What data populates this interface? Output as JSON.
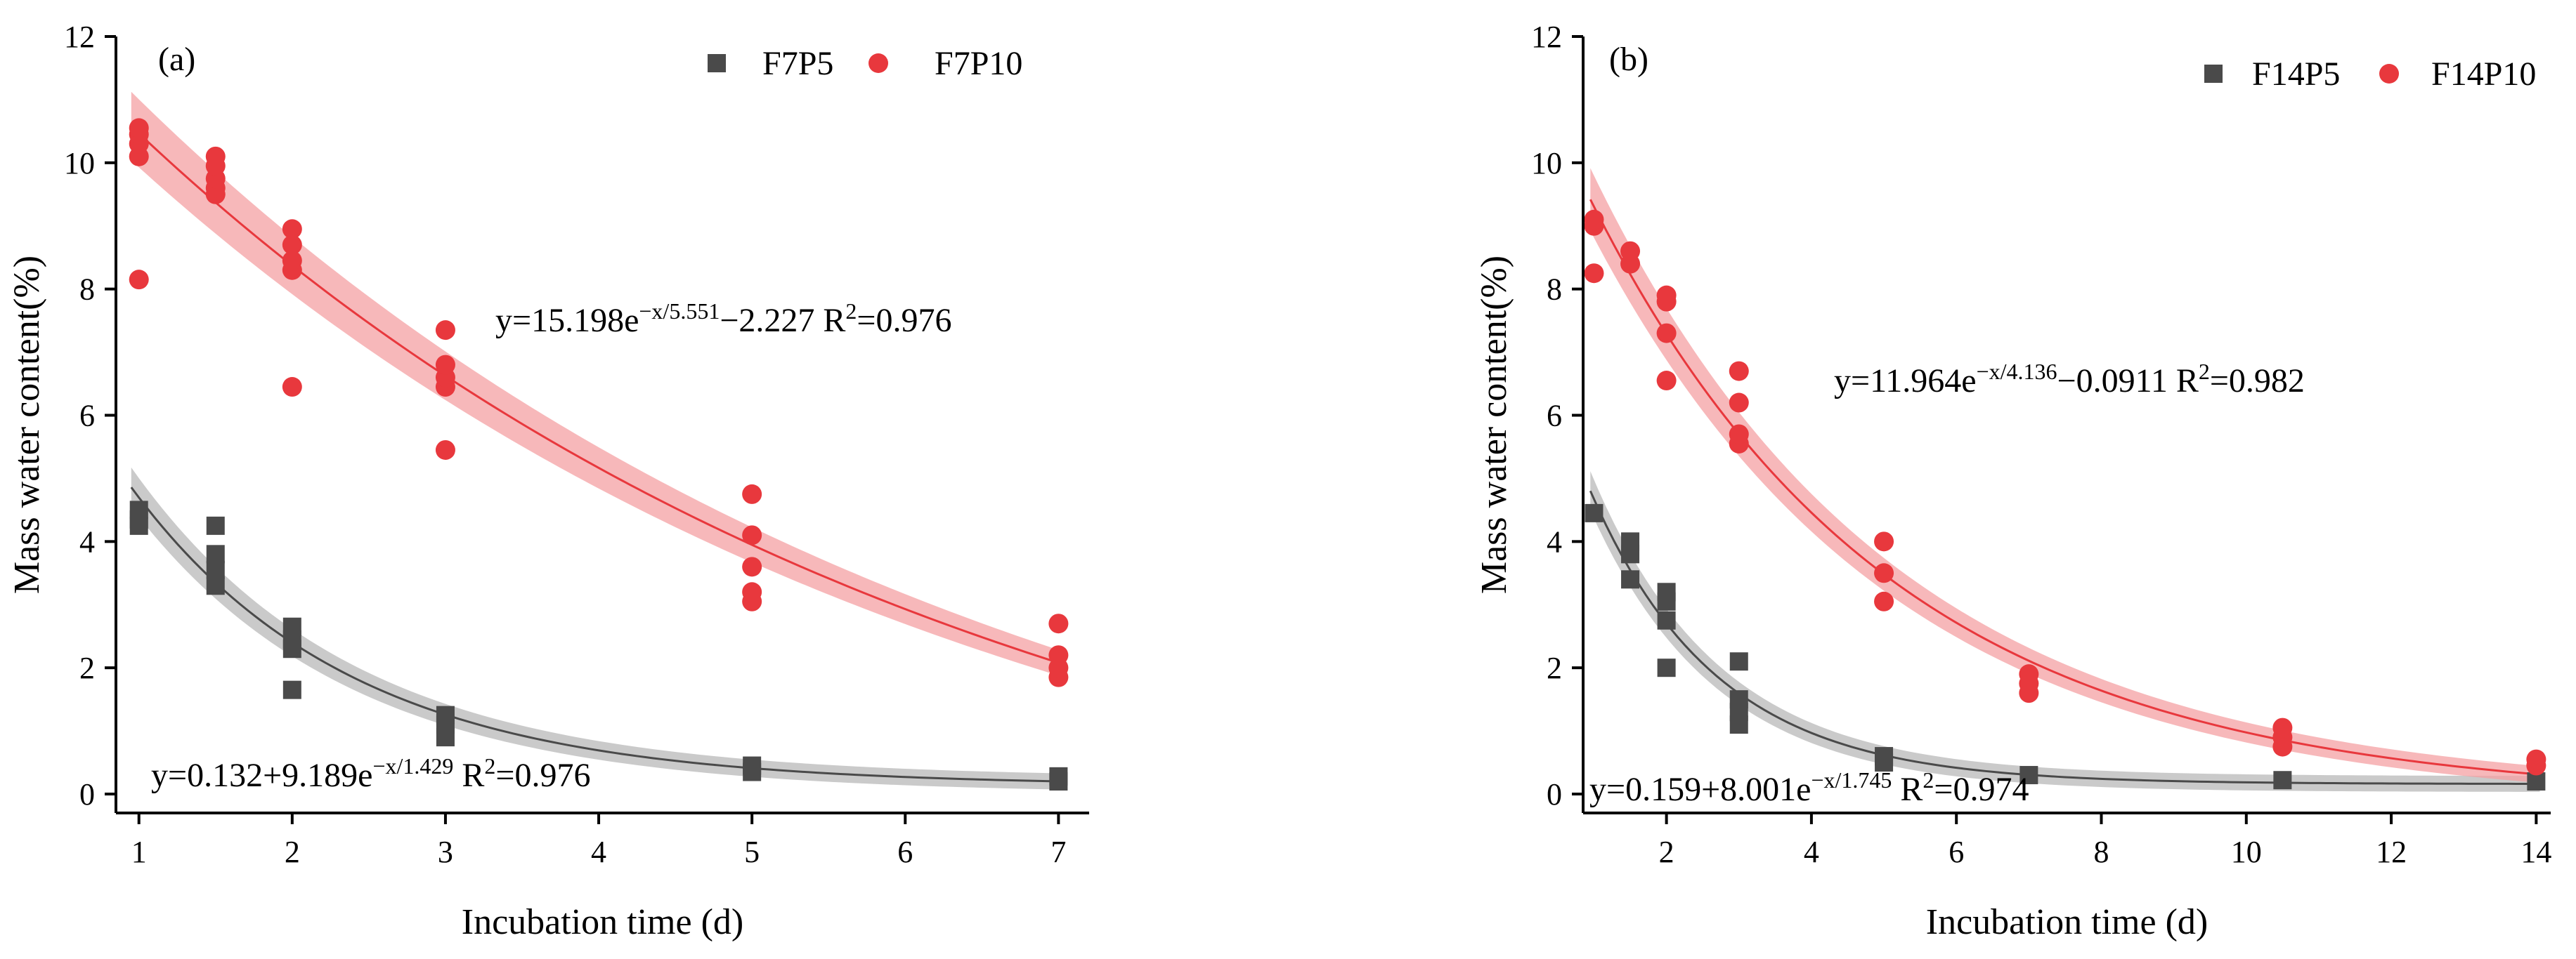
{
  "chart_data": [
    {
      "type": "scatter",
      "panel_label": "(a)",
      "xlabel": "Incubation time (d)",
      "ylabel": "Mass water content(%)",
      "xlim": [
        0.85,
        7.2
      ],
      "ylim": [
        -0.3,
        12
      ],
      "xticks": [
        1,
        2,
        3,
        4,
        5,
        6,
        7
      ],
      "yticks": [
        0,
        2,
        4,
        6,
        8,
        10,
        12
      ],
      "grid": false,
      "legend_position": "top-right",
      "series": [
        {
          "name": "F7P5",
          "marker": "square",
          "color": "#4a4a4a",
          "band_color": "#b8b8b8",
          "fit": {
            "model": "c+a*exp(-x/t)",
            "a": 9.189,
            "t": 1.429,
            "c": 0.132
          },
          "equation": {
            "parts": [
              {
                "text": "y=0.132+9.189e"
              },
              {
                "text": "−x/1.429",
                "sup": true
              },
              {
                "text": " R"
              },
              {
                "text": "2",
                "sup": true
              },
              {
                "text": "=0.976"
              }
            ]
          },
          "points": [
            [
              1,
              4.25
            ],
            [
              1,
              4.5
            ],
            [
              1,
              4.35
            ],
            [
              1.5,
              3.3
            ],
            [
              1.5,
              3.55
            ],
            [
              1.5,
              3.8
            ],
            [
              1.5,
              4.25
            ],
            [
              2,
              1.65
            ],
            [
              2,
              2.3
            ],
            [
              2,
              2.45
            ],
            [
              2,
              2.65
            ],
            [
              3,
              0.9
            ],
            [
              3,
              1.1
            ],
            [
              3,
              1.25
            ],
            [
              5,
              0.35
            ],
            [
              5,
              0.45
            ],
            [
              7,
              0.2
            ],
            [
              7,
              0.28
            ]
          ]
        },
        {
          "name": "F7P10",
          "marker": "circle",
          "color": "#e8383d",
          "band_color": "#f4a0a3",
          "fit": {
            "model": "c+a*exp(-x/t)",
            "a": 15.198,
            "t": 5.551,
            "c": -2.227
          },
          "equation": {
            "parts": [
              {
                "text": "y=15.198e"
              },
              {
                "text": "−x/5.551",
                "sup": true
              },
              {
                "text": "−2.227 R"
              },
              {
                "text": "2",
                "sup": true
              },
              {
                "text": "=0.976"
              }
            ]
          },
          "points": [
            [
              1,
              8.15
            ],
            [
              1,
              10.1
            ],
            [
              1,
              10.3
            ],
            [
              1,
              10.45
            ],
            [
              1,
              10.55
            ],
            [
              1.5,
              9.5
            ],
            [
              1.5,
              9.6
            ],
            [
              1.5,
              9.75
            ],
            [
              1.5,
              9.95
            ],
            [
              1.5,
              10.1
            ],
            [
              2,
              6.45
            ],
            [
              2,
              8.3
            ],
            [
              2,
              8.45
            ],
            [
              2,
              8.7
            ],
            [
              2,
              8.95
            ],
            [
              3,
              5.45
            ],
            [
              3,
              6.45
            ],
            [
              3,
              6.6
            ],
            [
              3,
              6.8
            ],
            [
              3,
              7.35
            ],
            [
              5,
              3.05
            ],
            [
              5,
              3.2
            ],
            [
              5,
              3.6
            ],
            [
              5,
              4.1
            ],
            [
              5,
              4.75
            ],
            [
              7,
              1.85
            ],
            [
              7,
              2.0
            ],
            [
              7,
              2.2
            ],
            [
              7,
              2.7
            ]
          ]
        }
      ]
    },
    {
      "type": "scatter",
      "panel_label": "(b)",
      "xlabel": "Incubation time (d)",
      "ylabel": "Mass water content(%)",
      "xlim": [
        0.85,
        14.2
      ],
      "ylim": [
        -0.3,
        12
      ],
      "xticks": [
        2,
        4,
        6,
        8,
        10,
        12,
        14
      ],
      "yticks": [
        0,
        2,
        4,
        6,
        8,
        10,
        12
      ],
      "grid": false,
      "legend_position": "top-right",
      "series": [
        {
          "name": "F14P5",
          "marker": "square",
          "color": "#4a4a4a",
          "band_color": "#b8b8b8",
          "fit": {
            "model": "c+a*exp(-x/t)",
            "a": 8.001,
            "t": 1.745,
            "c": 0.159
          },
          "equation": {
            "parts": [
              {
                "text": "y=0.159+8.001e"
              },
              {
                "text": "−x/1.745",
                "sup": true
              },
              {
                "text": " R"
              },
              {
                "text": "2",
                "sup": true
              },
              {
                "text": "=0.974"
              }
            ]
          },
          "points": [
            [
              1,
              4.45
            ],
            [
              1.5,
              3.4
            ],
            [
              1.5,
              3.8
            ],
            [
              1.5,
              4.0
            ],
            [
              2,
              2.0
            ],
            [
              2,
              2.75
            ],
            [
              2,
              3.05
            ],
            [
              2,
              3.2
            ],
            [
              3,
              1.1
            ],
            [
              3,
              1.3
            ],
            [
              3,
              1.5
            ],
            [
              3,
              2.1
            ],
            [
              5,
              0.5
            ],
            [
              5,
              0.6
            ],
            [
              7,
              0.3
            ],
            [
              10.5,
              0.22
            ],
            [
              14,
              0.2
            ]
          ]
        },
        {
          "name": "F14P10",
          "marker": "circle",
          "color": "#e8383d",
          "band_color": "#f4a0a3",
          "fit": {
            "model": "c+a*exp(-x/t)",
            "a": 11.964,
            "t": 4.136,
            "c": -0.0911
          },
          "equation": {
            "parts": [
              {
                "text": "y=11.964e"
              },
              {
                "text": "−x/4.136",
                "sup": true
              },
              {
                "text": "−0.0911 R"
              },
              {
                "text": "2",
                "sup": true
              },
              {
                "text": "=0.982"
              }
            ]
          },
          "points": [
            [
              1,
              8.25
            ],
            [
              1,
              9.0
            ],
            [
              1,
              9.1
            ],
            [
              1.5,
              8.4
            ],
            [
              1.5,
              8.6
            ],
            [
              2,
              6.55
            ],
            [
              2,
              7.3
            ],
            [
              2,
              7.8
            ],
            [
              2,
              7.9
            ],
            [
              3,
              5.55
            ],
            [
              3,
              5.7
            ],
            [
              3,
              6.2
            ],
            [
              3,
              6.7
            ],
            [
              5,
              3.05
            ],
            [
              5,
              3.5
            ],
            [
              5,
              4.0
            ],
            [
              7,
              1.6
            ],
            [
              7,
              1.75
            ],
            [
              7,
              1.9
            ],
            [
              10.5,
              0.75
            ],
            [
              10.5,
              0.9
            ],
            [
              10.5,
              1.05
            ],
            [
              14,
              0.45
            ],
            [
              14,
              0.55
            ]
          ]
        }
      ]
    }
  ]
}
